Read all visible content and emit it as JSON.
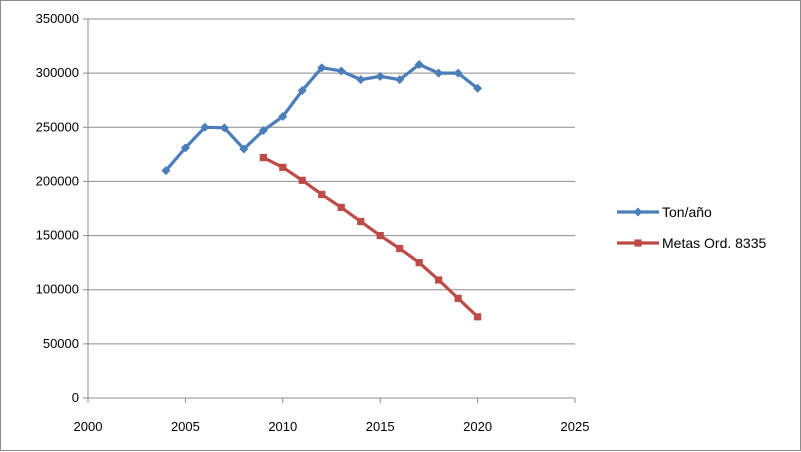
{
  "chart_data": {
    "type": "scatter",
    "title": "",
    "xlabel": "",
    "ylabel": "",
    "xlim": [
      2000,
      2025
    ],
    "ylim": [
      0,
      350000
    ],
    "x_ticks": [
      2000,
      2005,
      2010,
      2015,
      2020,
      2025
    ],
    "y_ticks": [
      0,
      50000,
      100000,
      150000,
      200000,
      250000,
      300000,
      350000
    ],
    "x_tick_labels": [
      "2000",
      "2005",
      "2010",
      "2015",
      "2020",
      "2025"
    ],
    "y_tick_labels": [
      "0",
      "50000",
      "100000",
      "150000",
      "200000",
      "250000",
      "300000",
      "350000"
    ],
    "grid": "horizontal",
    "legend_position": "right",
    "series": [
      {
        "name": "Ton/año",
        "color": "#4a7ebb",
        "marker": "diamond",
        "x": [
          2004,
          2005,
          2006,
          2007,
          2008,
          2009,
          2010,
          2011,
          2012,
          2013,
          2014,
          2015,
          2016,
          2017,
          2018,
          2019,
          2020
        ],
        "y": [
          210000,
          231000,
          250000,
          249500,
          230000,
          247000,
          260000,
          284000,
          305000,
          302000,
          294000,
          297000,
          294000,
          308000,
          300000,
          300000,
          286000
        ]
      },
      {
        "name": "Metas Ord. 8335",
        "color": "#be4b48",
        "marker": "square",
        "x": [
          2009,
          2010,
          2011,
          2012,
          2013,
          2014,
          2015,
          2016,
          2017,
          2018,
          2019,
          2020
        ],
        "y": [
          222000,
          213000,
          201000,
          188000,
          176000,
          163000,
          150000,
          138000,
          125000,
          109000,
          92000,
          75000
        ]
      }
    ]
  }
}
